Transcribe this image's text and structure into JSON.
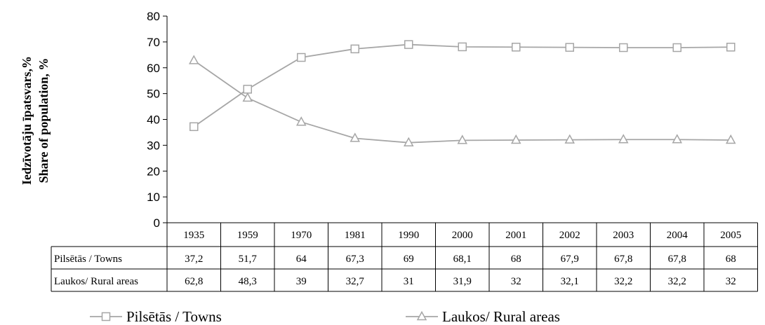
{
  "chart_data": {
    "type": "line",
    "title": "",
    "xlabel": "",
    "ylabel": [
      "Iedzīvotāju īpatsvars,%",
      "Share of population, %"
    ],
    "ylim": [
      0,
      80
    ],
    "yticks": [
      0,
      10,
      20,
      30,
      40,
      50,
      60,
      70,
      80
    ],
    "categories": [
      "1935",
      "1959",
      "1970",
      "1981",
      "1990",
      "2000",
      "2001",
      "2002",
      "2003",
      "2004",
      "2005"
    ],
    "series": [
      {
        "name": "Pilsētās / Towns",
        "marker": "square",
        "color": "#a6a6a6",
        "values": [
          37.2,
          51.7,
          64,
          67.3,
          69,
          68.1,
          68,
          67.9,
          67.8,
          67.8,
          68
        ],
        "labels": [
          "37,2",
          "51,7",
          "64",
          "67,3",
          "69",
          "68,1",
          "68",
          "67,9",
          "67,8",
          "67,8",
          "68"
        ]
      },
      {
        "name": "Laukos/ Rural areas",
        "marker": "triangle",
        "color": "#a6a6a6",
        "values": [
          62.8,
          48.3,
          39,
          32.7,
          31,
          31.9,
          32,
          32.1,
          32.2,
          32.2,
          32
        ],
        "labels": [
          "62,8",
          "48,3",
          "39",
          "32,7",
          "31",
          "31,9",
          "32",
          "32,1",
          "32,2",
          "32,2",
          "32"
        ]
      }
    ],
    "grid": false,
    "legend": "bottom",
    "data_table": true
  }
}
